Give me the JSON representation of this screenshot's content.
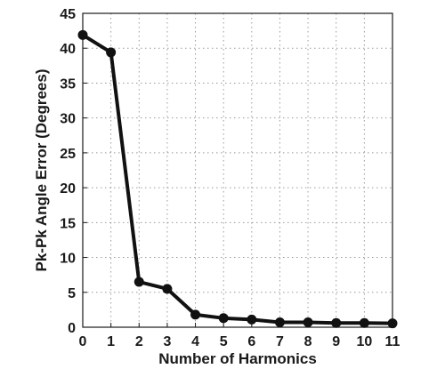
{
  "chart_data": {
    "type": "line",
    "title": "",
    "xlabel": "Number of Harmonics",
    "ylabel": "Pk-Pk Angle Error (Degrees)",
    "xlim": [
      0,
      11
    ],
    "ylim": [
      0,
      45
    ],
    "xticks": [
      0,
      1,
      2,
      3,
      4,
      5,
      6,
      7,
      8,
      9,
      10,
      11
    ],
    "yticks": [
      0,
      5,
      10,
      15,
      20,
      25,
      30,
      35,
      40,
      45
    ],
    "grid": true,
    "series": [
      {
        "x": [
          0,
          1,
          2,
          3,
          4,
          5,
          6,
          7,
          8,
          9,
          10,
          11
        ],
        "y": [
          41.9,
          39.4,
          6.5,
          5.5,
          1.8,
          1.3,
          1.1,
          0.7,
          0.7,
          0.6,
          0.6,
          0.55
        ]
      }
    ]
  }
}
